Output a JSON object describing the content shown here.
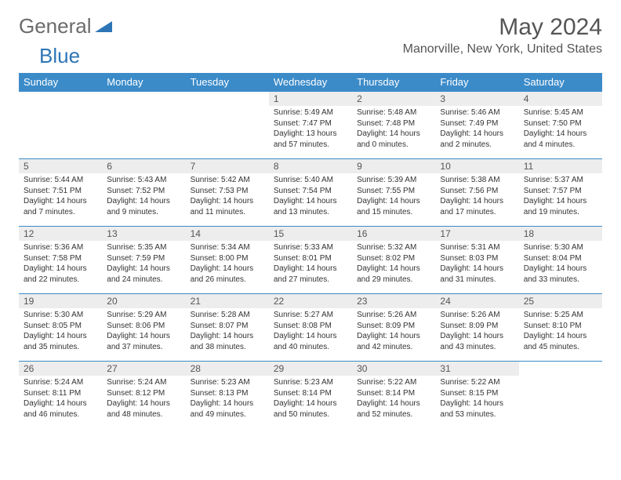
{
  "logo": {
    "text1": "General",
    "text2": "Blue"
  },
  "title": "May 2024",
  "location": "Manorville, New York, United States",
  "colors": {
    "header_bg": "#3b8bc9",
    "header_fg": "#ffffff",
    "daynum_bg": "#ededed",
    "border": "#3b8bc9",
    "logo_gray": "#6b6b6b",
    "logo_blue": "#2e75b6"
  },
  "weekdays": [
    "Sunday",
    "Monday",
    "Tuesday",
    "Wednesday",
    "Thursday",
    "Friday",
    "Saturday"
  ],
  "weeks": [
    [
      {
        "empty": true
      },
      {
        "empty": true
      },
      {
        "empty": true
      },
      {
        "n": "1",
        "sr": "Sunrise: 5:49 AM",
        "ss": "Sunset: 7:47 PM",
        "dl": "Daylight: 13 hours and 57 minutes."
      },
      {
        "n": "2",
        "sr": "Sunrise: 5:48 AM",
        "ss": "Sunset: 7:48 PM",
        "dl": "Daylight: 14 hours and 0 minutes."
      },
      {
        "n": "3",
        "sr": "Sunrise: 5:46 AM",
        "ss": "Sunset: 7:49 PM",
        "dl": "Daylight: 14 hours and 2 minutes."
      },
      {
        "n": "4",
        "sr": "Sunrise: 5:45 AM",
        "ss": "Sunset: 7:50 PM",
        "dl": "Daylight: 14 hours and 4 minutes."
      }
    ],
    [
      {
        "n": "5",
        "sr": "Sunrise: 5:44 AM",
        "ss": "Sunset: 7:51 PM",
        "dl": "Daylight: 14 hours and 7 minutes."
      },
      {
        "n": "6",
        "sr": "Sunrise: 5:43 AM",
        "ss": "Sunset: 7:52 PM",
        "dl": "Daylight: 14 hours and 9 minutes."
      },
      {
        "n": "7",
        "sr": "Sunrise: 5:42 AM",
        "ss": "Sunset: 7:53 PM",
        "dl": "Daylight: 14 hours and 11 minutes."
      },
      {
        "n": "8",
        "sr": "Sunrise: 5:40 AM",
        "ss": "Sunset: 7:54 PM",
        "dl": "Daylight: 14 hours and 13 minutes."
      },
      {
        "n": "9",
        "sr": "Sunrise: 5:39 AM",
        "ss": "Sunset: 7:55 PM",
        "dl": "Daylight: 14 hours and 15 minutes."
      },
      {
        "n": "10",
        "sr": "Sunrise: 5:38 AM",
        "ss": "Sunset: 7:56 PM",
        "dl": "Daylight: 14 hours and 17 minutes."
      },
      {
        "n": "11",
        "sr": "Sunrise: 5:37 AM",
        "ss": "Sunset: 7:57 PM",
        "dl": "Daylight: 14 hours and 19 minutes."
      }
    ],
    [
      {
        "n": "12",
        "sr": "Sunrise: 5:36 AM",
        "ss": "Sunset: 7:58 PM",
        "dl": "Daylight: 14 hours and 22 minutes."
      },
      {
        "n": "13",
        "sr": "Sunrise: 5:35 AM",
        "ss": "Sunset: 7:59 PM",
        "dl": "Daylight: 14 hours and 24 minutes."
      },
      {
        "n": "14",
        "sr": "Sunrise: 5:34 AM",
        "ss": "Sunset: 8:00 PM",
        "dl": "Daylight: 14 hours and 26 minutes."
      },
      {
        "n": "15",
        "sr": "Sunrise: 5:33 AM",
        "ss": "Sunset: 8:01 PM",
        "dl": "Daylight: 14 hours and 27 minutes."
      },
      {
        "n": "16",
        "sr": "Sunrise: 5:32 AM",
        "ss": "Sunset: 8:02 PM",
        "dl": "Daylight: 14 hours and 29 minutes."
      },
      {
        "n": "17",
        "sr": "Sunrise: 5:31 AM",
        "ss": "Sunset: 8:03 PM",
        "dl": "Daylight: 14 hours and 31 minutes."
      },
      {
        "n": "18",
        "sr": "Sunrise: 5:30 AM",
        "ss": "Sunset: 8:04 PM",
        "dl": "Daylight: 14 hours and 33 minutes."
      }
    ],
    [
      {
        "n": "19",
        "sr": "Sunrise: 5:30 AM",
        "ss": "Sunset: 8:05 PM",
        "dl": "Daylight: 14 hours and 35 minutes."
      },
      {
        "n": "20",
        "sr": "Sunrise: 5:29 AM",
        "ss": "Sunset: 8:06 PM",
        "dl": "Daylight: 14 hours and 37 minutes."
      },
      {
        "n": "21",
        "sr": "Sunrise: 5:28 AM",
        "ss": "Sunset: 8:07 PM",
        "dl": "Daylight: 14 hours and 38 minutes."
      },
      {
        "n": "22",
        "sr": "Sunrise: 5:27 AM",
        "ss": "Sunset: 8:08 PM",
        "dl": "Daylight: 14 hours and 40 minutes."
      },
      {
        "n": "23",
        "sr": "Sunrise: 5:26 AM",
        "ss": "Sunset: 8:09 PM",
        "dl": "Daylight: 14 hours and 42 minutes."
      },
      {
        "n": "24",
        "sr": "Sunrise: 5:26 AM",
        "ss": "Sunset: 8:09 PM",
        "dl": "Daylight: 14 hours and 43 minutes."
      },
      {
        "n": "25",
        "sr": "Sunrise: 5:25 AM",
        "ss": "Sunset: 8:10 PM",
        "dl": "Daylight: 14 hours and 45 minutes."
      }
    ],
    [
      {
        "n": "26",
        "sr": "Sunrise: 5:24 AM",
        "ss": "Sunset: 8:11 PM",
        "dl": "Daylight: 14 hours and 46 minutes."
      },
      {
        "n": "27",
        "sr": "Sunrise: 5:24 AM",
        "ss": "Sunset: 8:12 PM",
        "dl": "Daylight: 14 hours and 48 minutes."
      },
      {
        "n": "28",
        "sr": "Sunrise: 5:23 AM",
        "ss": "Sunset: 8:13 PM",
        "dl": "Daylight: 14 hours and 49 minutes."
      },
      {
        "n": "29",
        "sr": "Sunrise: 5:23 AM",
        "ss": "Sunset: 8:14 PM",
        "dl": "Daylight: 14 hours and 50 minutes."
      },
      {
        "n": "30",
        "sr": "Sunrise: 5:22 AM",
        "ss": "Sunset: 8:14 PM",
        "dl": "Daylight: 14 hours and 52 minutes."
      },
      {
        "n": "31",
        "sr": "Sunrise: 5:22 AM",
        "ss": "Sunset: 8:15 PM",
        "dl": "Daylight: 14 hours and 53 minutes."
      },
      {
        "empty": true
      }
    ]
  ]
}
